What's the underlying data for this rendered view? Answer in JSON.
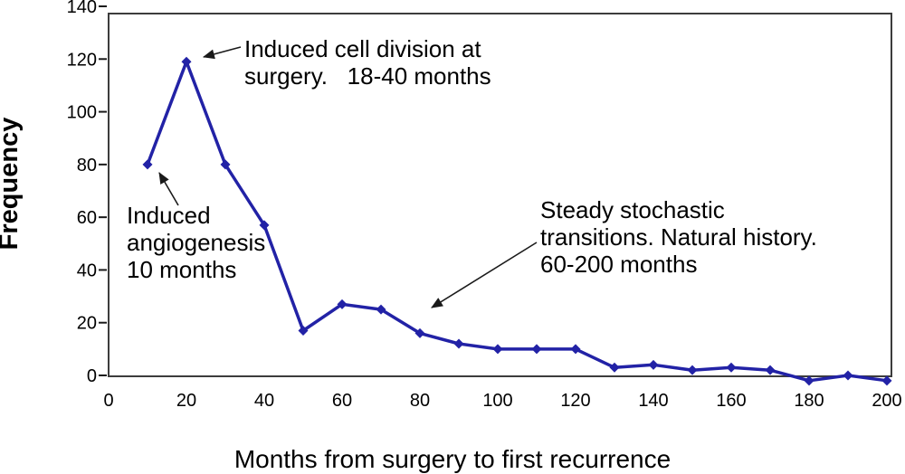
{
  "chart_data": {
    "type": "line",
    "title": "",
    "xlabel": "Months from surgery to first recurrence",
    "ylabel": "Frequency",
    "x": [
      10,
      20,
      30,
      40,
      50,
      60,
      70,
      80,
      90,
      100,
      110,
      120,
      130,
      140,
      150,
      160,
      170,
      180,
      190,
      200
    ],
    "y": [
      80,
      119,
      80,
      57,
      17,
      27,
      25,
      16,
      12,
      10,
      10,
      10,
      3,
      4,
      2,
      3,
      2,
      -2,
      0,
      -2
    ],
    "xlim": [
      0,
      200
    ],
    "ylim": [
      0,
      140
    ],
    "x_ticks": [
      0,
      20,
      40,
      60,
      80,
      100,
      120,
      140,
      160,
      180,
      200
    ],
    "y_ticks": [
      0,
      20,
      40,
      60,
      80,
      100,
      120,
      140
    ],
    "grid": false,
    "legend_position": "none",
    "line_color": "#2222A6",
    "marker": "diamond",
    "annotations": [
      {
        "lines": [
          "Induced cell division at",
          "surgery.   18-40 months"
        ],
        "points_to": "peak at (20, 119)"
      },
      {
        "lines": [
          "Induced",
          "angiogenesis",
          "10 months"
        ],
        "points_to": "point at (10, 80)"
      },
      {
        "lines": [
          "Steady stochastic",
          "transitions. Natural history.",
          "60-200 months"
        ],
        "points_to": "curve near (80, 25)"
      }
    ]
  }
}
